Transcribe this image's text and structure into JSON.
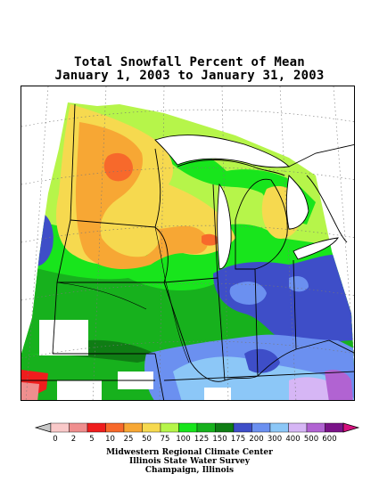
{
  "title": {
    "line1": "Total Snowfall Percent of Mean",
    "line2": "January 1, 2003 to January 31, 2003"
  },
  "legend": {
    "labels": [
      "0",
      "2",
      "5",
      "10",
      "25",
      "50",
      "75",
      "100",
      "125",
      "150",
      "175",
      "200",
      "300",
      "400",
      "500",
      "600"
    ],
    "colors": [
      "#f9c9c9",
      "#ef8e8e",
      "#ef1d1d",
      "#f7692b",
      "#f7a734",
      "#f6d94f",
      "#b6f54a",
      "#18e51c",
      "#17b11d",
      "#0f7d14",
      "#3e4ec8",
      "#6b90f0",
      "#8cc7f7",
      "#d6b6f5",
      "#b163d2",
      "#7a1388",
      "#d6107e"
    ],
    "under_color": "#c8c8c8"
  },
  "map": {
    "features": [
      "state-borders",
      "great-lakes",
      "lat-lon-graticule",
      "percent-of-mean-shading"
    ]
  },
  "credits": {
    "line1": "Midwestern Regional Climate Center",
    "line2": "Illinois State Water Survey",
    "line3": "Champaign, Illinois"
  }
}
